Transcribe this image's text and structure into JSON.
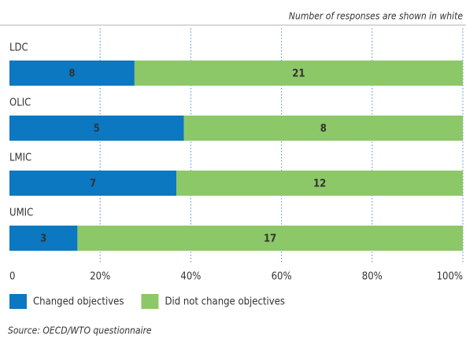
{
  "chart_data": {
    "type": "bar_stacked_percent",
    "subtitle": "Number of responses are shown in white",
    "categories": [
      "LDC",
      "OLIC",
      "LMIC",
      "UMIC"
    ],
    "series": [
      {
        "name": "Changed objectives",
        "color": "#0b78c1",
        "values": [
          8,
          5,
          7,
          3
        ]
      },
      {
        "name": "Did not change objectives",
        "color": "#8dc868",
        "values": [
          21,
          8,
          12,
          17
        ]
      }
    ],
    "xlim": [
      0,
      100
    ],
    "xticks": [
      0,
      {
        "value": 20,
        "label": "20%"
      },
      {
        "value": 40,
        "label": "40%"
      },
      {
        "value": 60,
        "label": "60%"
      },
      {
        "value": 80,
        "label": "80%"
      },
      {
        "value": 100,
        "label": "100%"
      }
    ],
    "grid": true,
    "source": "Source:  OECD/WTO questionnaire"
  }
}
